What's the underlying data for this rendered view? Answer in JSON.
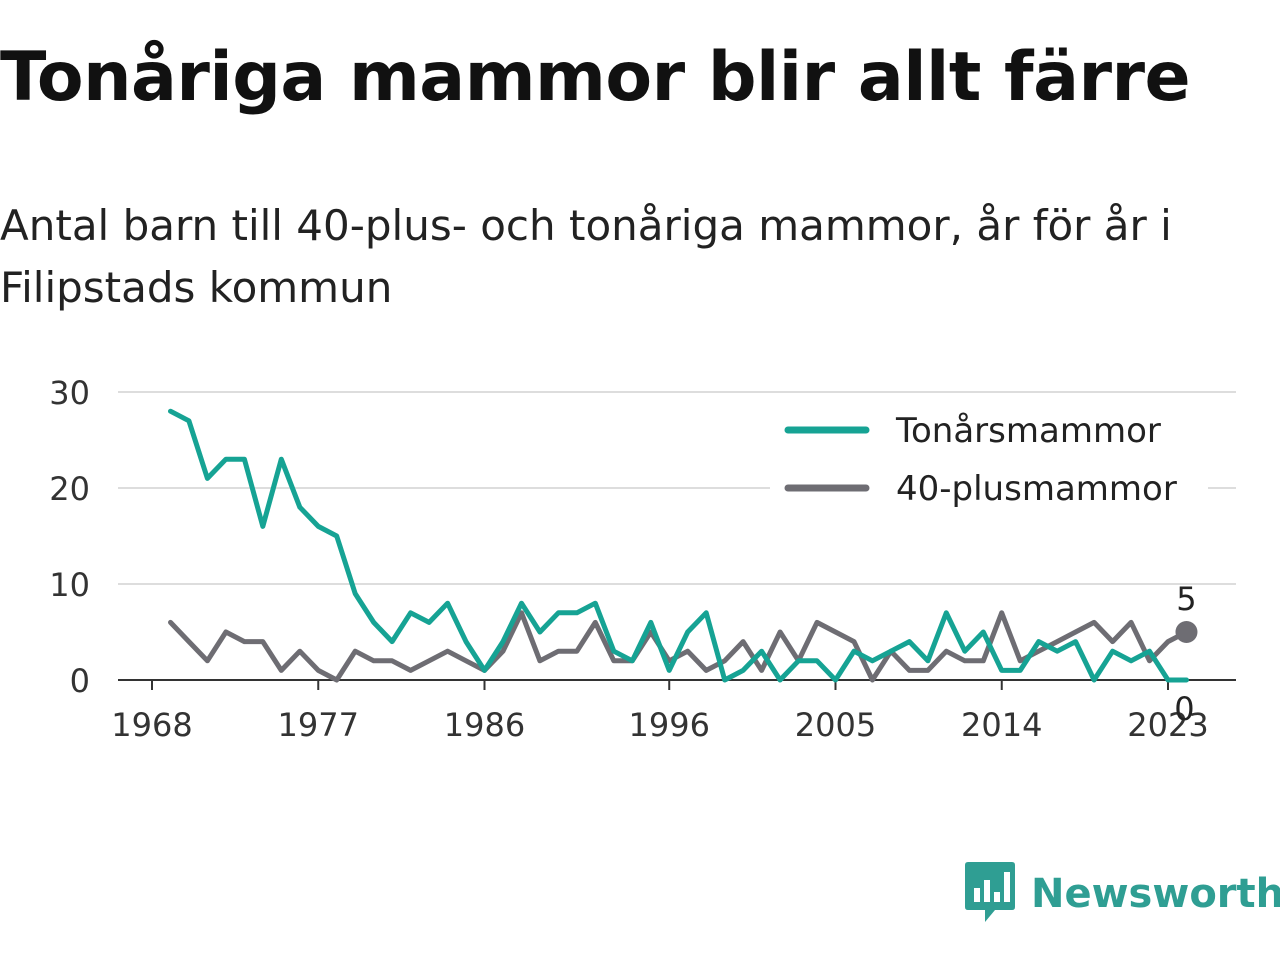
{
  "header": {
    "title": "Tonåriga mammor blir allt färre",
    "subtitle": "Antal barn till 40-plus- och tonåriga mammor, år för år i Filipstads kommun"
  },
  "brand": {
    "name": "Newsworthy",
    "color": "#2f9e93",
    "icon": "newsworthy-logo-icon"
  },
  "chart_data": {
    "type": "line",
    "title": "Tonåriga mammor blir allt färre",
    "subtitle": "Antal barn till 40-plus- och tonåriga mammor, år för år i Filipstads kommun",
    "xlabel": "",
    "ylabel": "",
    "x": [
      1969,
      1970,
      1971,
      1972,
      1973,
      1974,
      1975,
      1976,
      1977,
      1978,
      1979,
      1980,
      1981,
      1982,
      1983,
      1984,
      1985,
      1986,
      1987,
      1988,
      1989,
      1990,
      1991,
      1992,
      1993,
      1994,
      1995,
      1996,
      1997,
      1998,
      1999,
      2000,
      2001,
      2002,
      2003,
      2004,
      2005,
      2006,
      2007,
      2008,
      2009,
      2010,
      2011,
      2012,
      2013,
      2014,
      2015,
      2016,
      2017,
      2018,
      2019,
      2020,
      2021,
      2022,
      2023,
      2024
    ],
    "xlim": [
      1967,
      2025
    ],
    "ylim": [
      0,
      30
    ],
    "x_ticks": [
      "1968",
      "1977",
      "1986",
      "1996",
      "2005",
      "2014",
      "2023"
    ],
    "y_ticks": [
      "0",
      "10",
      "20",
      "30"
    ],
    "grid": true,
    "legend_position": "top-right",
    "series": [
      {
        "name": "Tonårsmammor",
        "color": "#16a394",
        "values": [
          28,
          27,
          21,
          23,
          23,
          16,
          23,
          18,
          16,
          15,
          9,
          6,
          4,
          7,
          6,
          8,
          4,
          1,
          4,
          8,
          5,
          7,
          7,
          8,
          3,
          2,
          6,
          1,
          5,
          7,
          0,
          1,
          3,
          0,
          2,
          2,
          0,
          3,
          2,
          3,
          4,
          2,
          7,
          3,
          5,
          1,
          1,
          4,
          3,
          4,
          0,
          3,
          2,
          3,
          0,
          0
        ],
        "end_label": "0"
      },
      {
        "name": "40-plusmammor",
        "color": "#6e6d73",
        "values": [
          6,
          4,
          2,
          5,
          4,
          4,
          1,
          3,
          1,
          0,
          3,
          2,
          2,
          1,
          2,
          3,
          2,
          1,
          3,
          7,
          2,
          3,
          3,
          6,
          2,
          2,
          5,
          2,
          3,
          1,
          2,
          4,
          1,
          5,
          2,
          6,
          5,
          4,
          0,
          3,
          1,
          1,
          3,
          2,
          2,
          7,
          2,
          3,
          4,
          5,
          6,
          4,
          6,
          2,
          4,
          5
        ],
        "end_label": "5"
      }
    ]
  }
}
